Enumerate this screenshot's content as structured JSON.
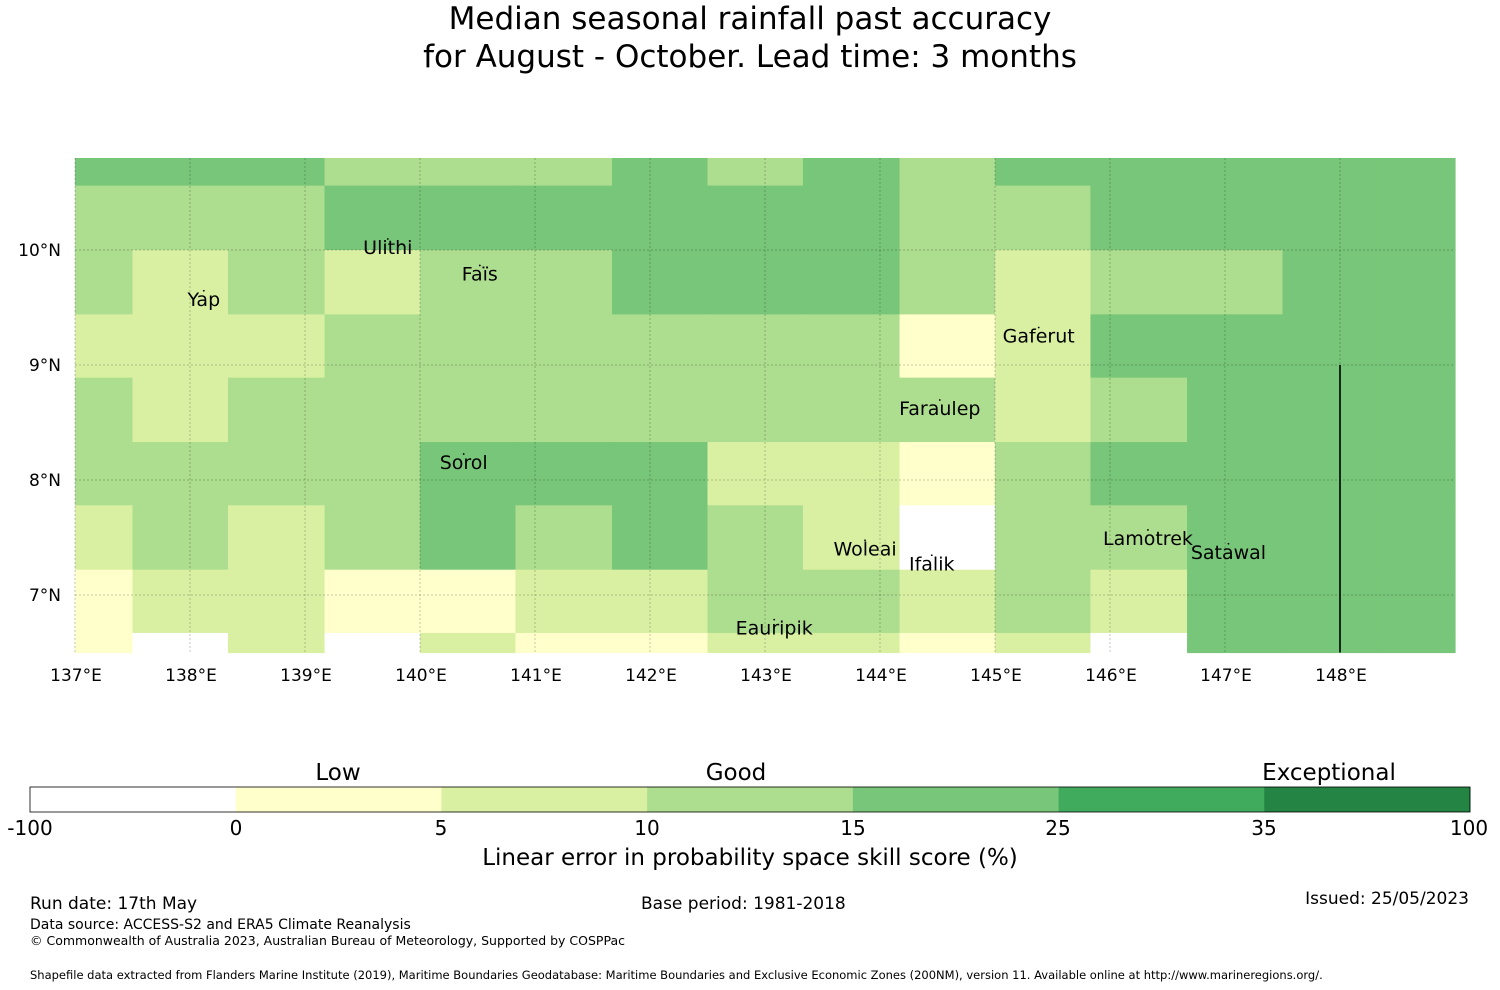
{
  "title": {
    "line1": "Median seasonal rainfall past accuracy",
    "line2": "for August - October. Lead time: 3 months"
  },
  "chart_data": {
    "type": "heatmap",
    "xlabel": "",
    "ylabel": "",
    "xlim": [
      137.0,
      149.0
    ],
    "ylim": [
      6.5,
      10.8
    ],
    "x_ticks": [
      137,
      138,
      139,
      140,
      141,
      142,
      143,
      144,
      145,
      146,
      147,
      148
    ],
    "x_tick_labels": [
      "137°E",
      "138°E",
      "139°E",
      "140°E",
      "141°E",
      "142°E",
      "143°E",
      "144°E",
      "145°E",
      "146°E",
      "147°E",
      "148°E"
    ],
    "y_ticks": [
      7,
      8,
      9,
      10
    ],
    "y_tick_labels": [
      "7°N",
      "8°N",
      "9°N",
      "10°N"
    ],
    "grid": true,
    "colors": [
      "#ffffff",
      "#ffffcc",
      "#d9f0a3",
      "#addd8e",
      "#78c679",
      "#41ab5d",
      "#238443"
    ],
    "bin_edges": [
      -100,
      0,
      5,
      10,
      15,
      25,
      35,
      100
    ],
    "cell_lon_edges": [
      137.0,
      137.5,
      138.33,
      139.17,
      140.0,
      140.83,
      141.67,
      142.5,
      143.33,
      144.17,
      145.0,
      145.83,
      146.67,
      147.5,
      148.33,
      149.0
    ],
    "cell_lat_edges": [
      10.8,
      10.56,
      10.0,
      9.44,
      8.89,
      8.33,
      7.78,
      7.22,
      6.67,
      6.5
    ],
    "cell_category_rows": [
      [
        4,
        4,
        4,
        3,
        3,
        3,
        4,
        3,
        4,
        3,
        4,
        4,
        4,
        4,
        4
      ],
      [
        3,
        3,
        3,
        4,
        4,
        4,
        4,
        4,
        4,
        3,
        3,
        4,
        4,
        4,
        4
      ],
      [
        3,
        2,
        3,
        2,
        3,
        3,
        4,
        4,
        4,
        3,
        2,
        3,
        3,
        4,
        4
      ],
      [
        2,
        2,
        2,
        3,
        3,
        3,
        3,
        3,
        3,
        1,
        2,
        4,
        4,
        4,
        4
      ],
      [
        3,
        2,
        3,
        3,
        3,
        3,
        3,
        3,
        3,
        3,
        2,
        3,
        4,
        4,
        4
      ],
      [
        3,
        3,
        3,
        3,
        4,
        4,
        4,
        2,
        2,
        1,
        3,
        4,
        4,
        4,
        4
      ],
      [
        2,
        3,
        2,
        3,
        4,
        3,
        4,
        3,
        2,
        0,
        3,
        3,
        4,
        4,
        4
      ],
      [
        1,
        2,
        2,
        1,
        1,
        2,
        2,
        3,
        3,
        2,
        3,
        2,
        4,
        4,
        4
      ],
      [
        1,
        0,
        2,
        0,
        2,
        1,
        1,
        2,
        2,
        1,
        2,
        0,
        4,
        4,
        4
      ]
    ],
    "islands": [
      {
        "name": "Ulithi",
        "lon": 139.72,
        "lat": 10.0
      },
      {
        "name": "Faïs",
        "lon": 140.52,
        "lat": 9.77
      },
      {
        "name": "Yap",
        "lon": 138.12,
        "lat": 9.55
      },
      {
        "name": "Gaferut",
        "lon": 145.38,
        "lat": 9.23
      },
      {
        "name": "Faraulep",
        "lon": 144.52,
        "lat": 8.6
      },
      {
        "name": "Sorol",
        "lon": 140.38,
        "lat": 8.13
      },
      {
        "name": "Woleai",
        "lon": 143.87,
        "lat": 7.38
      },
      {
        "name": "Ifalik",
        "lon": 144.45,
        "lat": 7.25
      },
      {
        "name": "Lamotrek",
        "lon": 146.33,
        "lat": 7.47
      },
      {
        "name": "Satawal",
        "lon": 147.03,
        "lat": 7.35
      },
      {
        "name": "Eauripik",
        "lon": 143.08,
        "lat": 6.69
      }
    ],
    "boundary_line": {
      "lon": 148.0,
      "lat_from": 6.5,
      "lat_to": 9.0
    }
  },
  "colorbar": {
    "ticks": [
      "-100",
      "0",
      "5",
      "10",
      "15",
      "25",
      "35",
      "100"
    ],
    "category_labels": [
      "Low",
      "Good",
      "Exceptional"
    ],
    "title": "Linear error in probability space skill score (%)"
  },
  "footer": {
    "run_date": "Run date: 17th May",
    "base_period": "Base period: 1981-2018",
    "issued": "Issued: 25/05/2023",
    "data_source": "Data source: ACCESS-S2 and ERA5 Climate Reanalysis",
    "copyright": "© Commonwealth of Australia 2023, Australian Bureau of Meteorology, Supported by COSPPac",
    "shapefile": "Shapefile data extracted from Flanders Marine Institute (2019), Maritime Boundaries Geodatabase: Maritime Boundaries and Exclusive Economic Zones (200NM), version 11. Available online at http://www.marineregions.org/."
  }
}
